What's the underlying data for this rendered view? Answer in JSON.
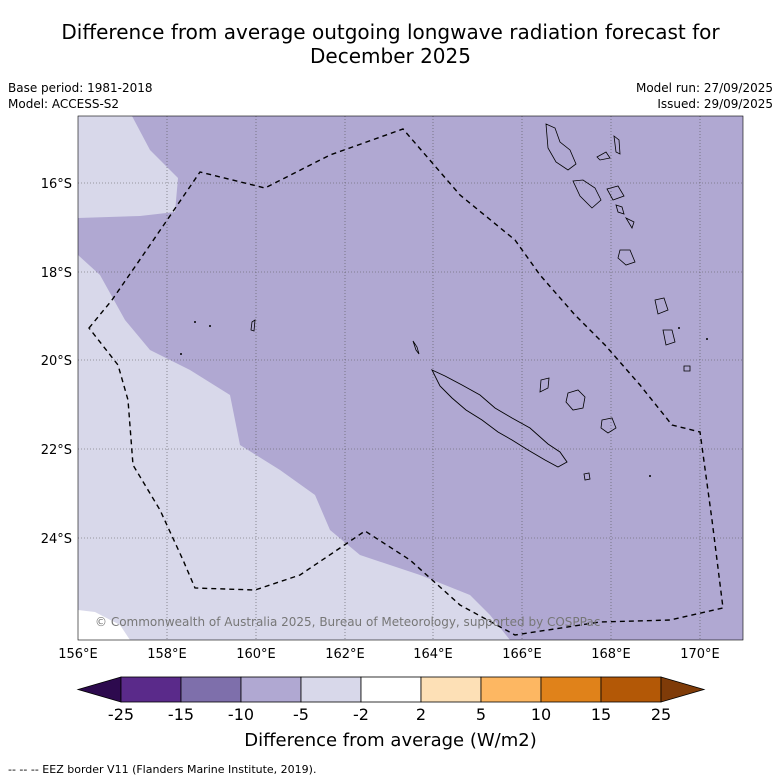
{
  "title_line1": "Difference from average outgoing longwave radiation forecast for",
  "title_line2": "December 2025",
  "base_period": "Base period: 1981-2018",
  "model": "Model: ACCESS-S2",
  "model_run": "Model run: 27/09/2025",
  "issued": "Issued: 29/09/2025",
  "lon_ticks": [
    "156°E",
    "158°E",
    "160°E",
    "162°E",
    "164°E",
    "166°E",
    "168°E",
    "170°E"
  ],
  "lat_ticks": [
    "16°S",
    "18°S",
    "20°S",
    "22°S",
    "24°S"
  ],
  "copyright": "© Commonwealth of Australia 2025, Bureau of Meteorology, supported by COSPPac",
  "colorbar": {
    "labels": [
      "-25",
      "-15",
      "-10",
      "-5",
      "-2",
      "2",
      "5",
      "10",
      "15",
      "25"
    ],
    "colors": [
      "#2d0a4e",
      "#5a2a8a",
      "#7e6fab",
      "#b0a8d2",
      "#d8d8ea",
      "#ffffff",
      "#fde0b6",
      "#fdb762",
      "#e0821a",
      "#b35806",
      "#7f3b08"
    ],
    "title": "Difference from average (W/m2)"
  },
  "footnote": "--  --  -- EEZ border V11 (Flanders Marine Institute, 2019).",
  "colors": {
    "light_purple": "#b0a8d2",
    "very_light_purple": "#d8d8ea"
  }
}
